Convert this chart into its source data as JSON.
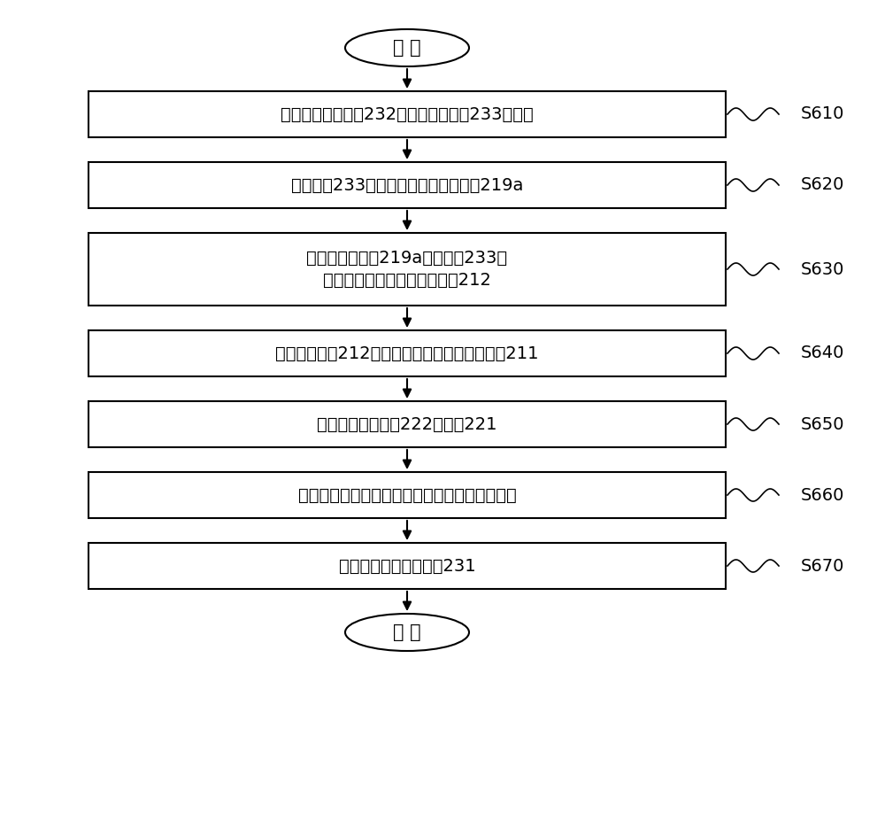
{
  "title": "",
  "background_color": "#ffffff",
  "start_label": "开 始",
  "end_label": "结 束",
  "boxes": [
    {
      "text": "提供在半导体衬底232上已形成外延层233的结构",
      "label": "S610",
      "lines": 1
    },
    {
      "text": "在外延层233上构图刻蚀形成多个凹槽219a",
      "label": "S620",
      "lines": 1
    },
    {
      "text": "在至少包含凹槽219a的外延层233上\n构图氧化形成凹凸状栅介质层212",
      "label": "S630",
      "lines": 2
    },
    {
      "text": "凹凸栅介质层212上对应构图形成凹凸状栅电极211",
      "label": "S640",
      "lines": 1
    },
    {
      "text": "构图掺杂形成体区222和源区221",
      "label": "S650",
      "lines": 1
    },
    {
      "text": "正面形成介质层、引出源区并金属化形成源电极",
      "label": "S660",
      "lines": 1
    },
    {
      "text": "背面金属化形成漏电极231",
      "label": "S670",
      "lines": 1
    }
  ],
  "arrow_color": "#000000",
  "box_edge_color": "#000000",
  "box_fill_color": "#ffffff",
  "text_color": "#000000",
  "font_size": 14,
  "label_font_size": 14
}
